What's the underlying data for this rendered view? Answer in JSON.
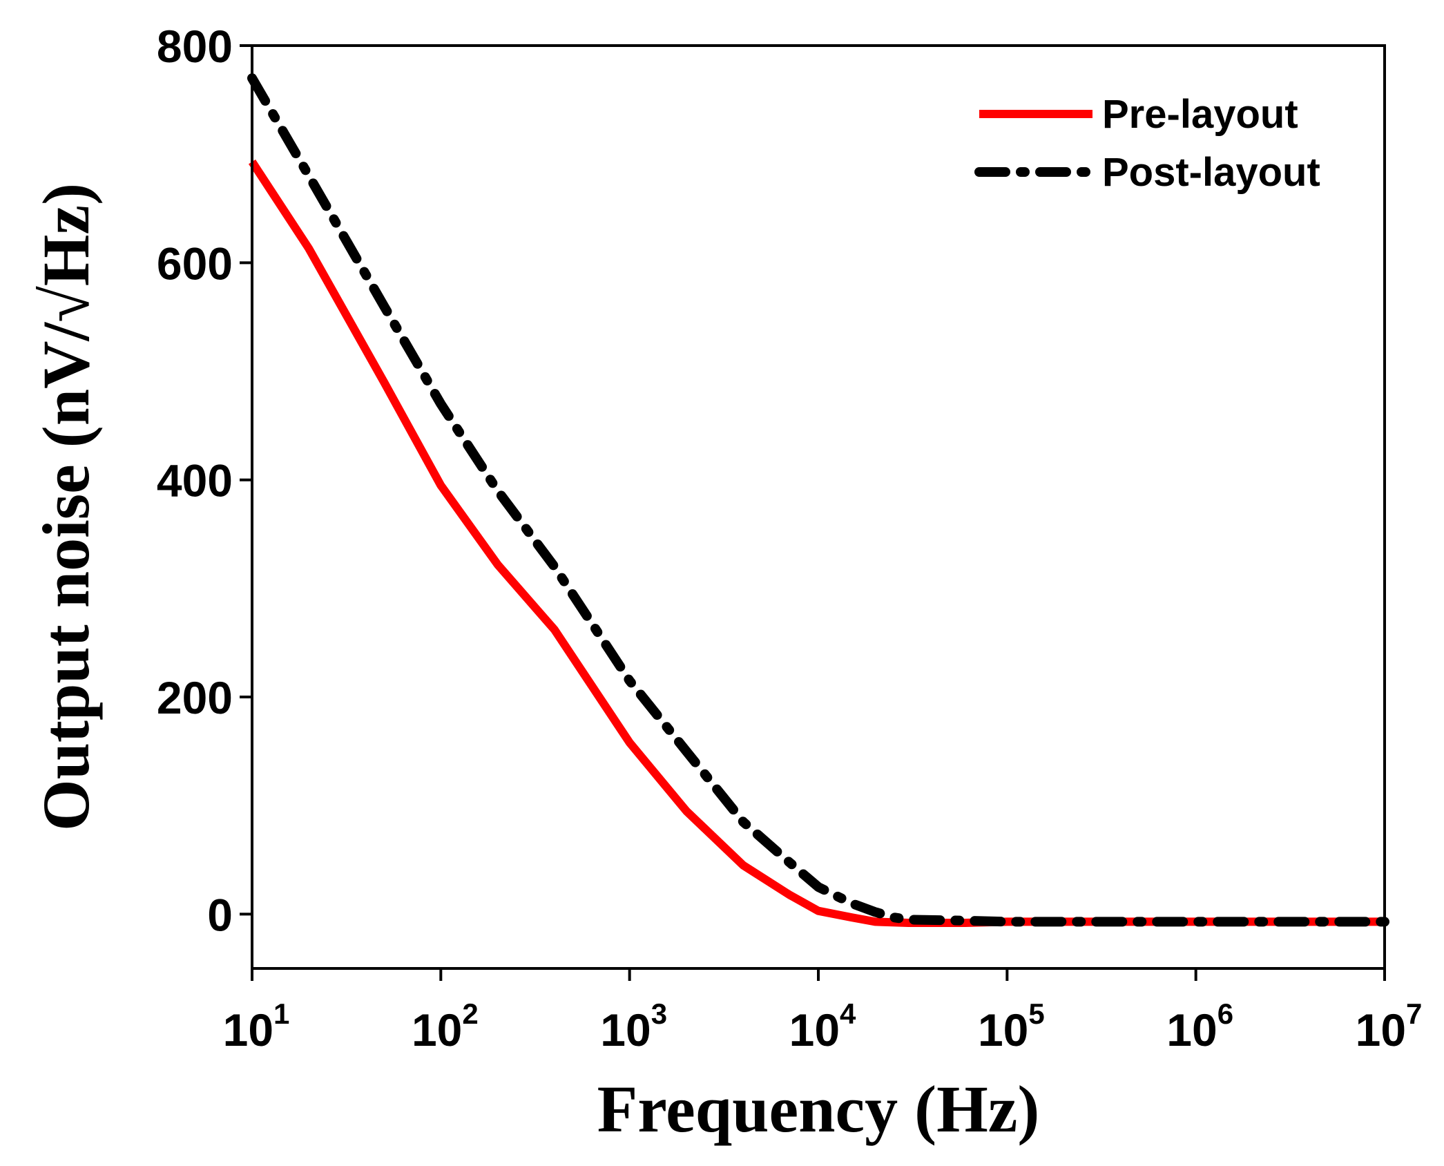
{
  "chart_data": {
    "type": "line",
    "xscale": "log",
    "xlabel": "Frequency (Hz)",
    "ylabel": "Output noise (nV/√Hz)",
    "xlim": [
      10,
      10000000
    ],
    "ylim": [
      -50,
      800
    ],
    "yticks": [
      {
        "value": 0,
        "label": "0"
      },
      {
        "value": 200,
        "label": "200"
      },
      {
        "value": 400,
        "label": "400"
      },
      {
        "value": 600,
        "label": "600"
      },
      {
        "value": 800,
        "label": "800"
      }
    ],
    "xticks": [
      {
        "value": 10,
        "base": "10",
        "exp": "1"
      },
      {
        "value": 100,
        "base": "10",
        "exp": "2"
      },
      {
        "value": 1000,
        "base": "10",
        "exp": "3"
      },
      {
        "value": 10000,
        "base": "10",
        "exp": "4"
      },
      {
        "value": 100000,
        "base": "10",
        "exp": "5"
      },
      {
        "value": 1000000,
        "base": "10",
        "exp": "6"
      },
      {
        "value": 10000000,
        "base": "10",
        "exp": "7"
      }
    ],
    "legend_position": "top-right",
    "series": [
      {
        "name": "Pre-layout",
        "color": "#ff0000",
        "style": "solid",
        "x": [
          10,
          20,
          50,
          100,
          200,
          400,
          1000,
          2000,
          4000,
          7000,
          10000,
          15000,
          20000,
          30000,
          60000,
          100000,
          300000,
          1000000,
          10000000
        ],
        "y": [
          693,
          613,
          490,
          395,
          322,
          262,
          158,
          95,
          45,
          18,
          3,
          -3,
          -7,
          -8,
          -8,
          -7,
          -7,
          -7,
          -7
        ]
      },
      {
        "name": "Post-layout",
        "color": "#000000",
        "style": "dash-dot",
        "x": [
          10,
          20,
          50,
          100,
          200,
          400,
          1000,
          2000,
          4000,
          7000,
          10000,
          15000,
          20000,
          25000,
          30000,
          60000,
          100000,
          300000,
          1000000,
          10000000
        ],
        "y": [
          770,
          680,
          560,
          470,
          390,
          320,
          215,
          150,
          85,
          48,
          25,
          10,
          2,
          -3,
          -5,
          -6,
          -7,
          -7,
          -7,
          -7
        ]
      }
    ]
  }
}
